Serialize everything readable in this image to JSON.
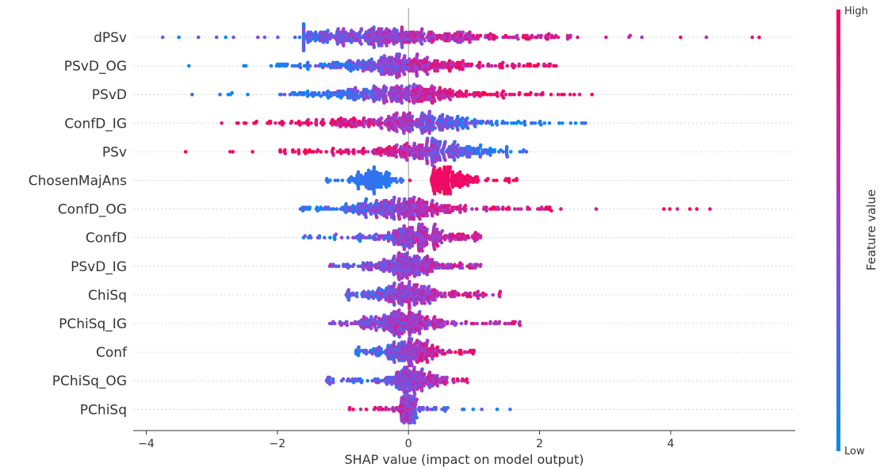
{
  "chart_data": {
    "type": "scatter",
    "subtype": "shap-beeswarm",
    "title": "",
    "xlabel": "SHAP value (impact on model output)",
    "ylabel": "",
    "xlim": [
      -4.2,
      5.9
    ],
    "xticks": [
      -4,
      -2,
      0,
      2,
      4
    ],
    "xtick_labels": [
      "−4",
      "−2",
      "0",
      "2",
      "4"
    ],
    "zero_line": 0,
    "grid": false,
    "colorbar": {
      "title": "Feature value",
      "high_label": "High",
      "low_label": "Low",
      "low_color": "#008bfb",
      "high_color": "#ff0052"
    },
    "features": [
      {
        "name": "dPSv",
        "min": -3.75,
        "max": 5.35,
        "core_min": -1.6,
        "core_max": 2.6,
        "center": -0.3,
        "peak": 0.5,
        "width": 1.4,
        "trend": 0.6,
        "count": 520
      },
      {
        "name": "PSvD_OG",
        "min": -3.35,
        "max": 2.25,
        "core_min": -2.2,
        "core_max": 2.0,
        "center": -0.2,
        "peak": 0.45,
        "width": 1.0,
        "trend": 0.9,
        "count": 420
      },
      {
        "name": "PSvD",
        "min": -3.3,
        "max": 2.8,
        "core_min": -2.1,
        "core_max": 2.3,
        "center": -0.2,
        "peak": 0.45,
        "width": 1.0,
        "trend": 0.9,
        "count": 420
      },
      {
        "name": "ConfD_IG",
        "min": -2.85,
        "max": 2.7,
        "core_min": -2.2,
        "core_max": 2.2,
        "center": 0.0,
        "peak": 0.45,
        "width": 1.0,
        "trend": -0.9,
        "count": 420
      },
      {
        "name": "PSv",
        "min": -3.4,
        "max": 1.8,
        "core_min": -2.0,
        "core_max": 1.5,
        "center": 0.3,
        "peak": 0.42,
        "width": 0.8,
        "trend": -0.95,
        "count": 380
      },
      {
        "name": "ChosenMajAns",
        "min": -1.25,
        "max": 1.65,
        "core_min": -0.9,
        "core_max": 1.3,
        "center": -0.5,
        "peak": 0.5,
        "width": 0.3,
        "trend": 1.0,
        "count": 340,
        "bimodal": true
      },
      {
        "name": "ConfD_OG",
        "min": -1.65,
        "max": 4.6,
        "core_min": -1.4,
        "core_max": 2.2,
        "center": -0.1,
        "peak": 0.42,
        "width": 0.7,
        "trend": 0.7,
        "count": 400
      },
      {
        "name": "ConfD",
        "min": -1.6,
        "max": 1.1,
        "core_min": -1.3,
        "core_max": 1.0,
        "center": 0.05,
        "peak": 0.38,
        "width": 0.5,
        "trend": 0.6,
        "count": 300
      },
      {
        "name": "PSvD_IG",
        "min": -1.2,
        "max": 1.1,
        "core_min": -1.1,
        "core_max": 1.0,
        "center": 0.0,
        "peak": 0.38,
        "width": 0.45,
        "trend": 0.3,
        "count": 300
      },
      {
        "name": "ChiSq",
        "min": -0.95,
        "max": 1.4,
        "core_min": -0.9,
        "core_max": 1.2,
        "center": 0.0,
        "peak": 0.38,
        "width": 0.45,
        "trend": 0.5,
        "count": 300
      },
      {
        "name": "PChiSq_IG",
        "min": -1.2,
        "max": 1.7,
        "core_min": -1.1,
        "core_max": 1.5,
        "center": -0.1,
        "peak": 0.4,
        "width": 0.55,
        "trend": 0.3,
        "count": 330
      },
      {
        "name": "Conf",
        "min": -0.8,
        "max": 1.0,
        "core_min": -0.7,
        "core_max": 0.9,
        "center": 0.0,
        "peak": 0.38,
        "width": 0.35,
        "trend": 0.8,
        "count": 270
      },
      {
        "name": "PChiSq_OG",
        "min": -1.25,
        "max": 0.9,
        "core_min": -1.2,
        "core_max": 0.85,
        "center": 0.05,
        "peak": 0.35,
        "width": 0.35,
        "trend": 0.5,
        "count": 260
      },
      {
        "name": "PChiSq",
        "min": -0.9,
        "max": 1.55,
        "core_min": -0.5,
        "core_max": 0.6,
        "center": 0.0,
        "peak": 0.3,
        "width": 0.12,
        "trend": -0.8,
        "count": 180
      }
    ]
  }
}
